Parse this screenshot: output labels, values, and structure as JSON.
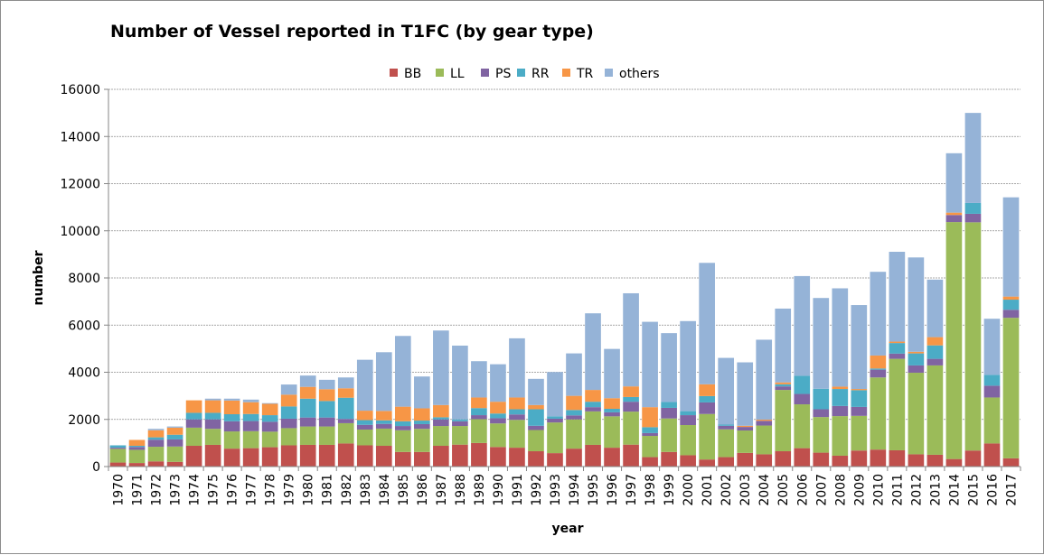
{
  "chart_data": {
    "type": "bar",
    "stacked": true,
    "title": "Number of Vessel reported in T1FC (by gear type)",
    "xlabel": "year",
    "ylabel": "number",
    "ylim": [
      0,
      16000
    ],
    "yticks": [
      0,
      2000,
      4000,
      6000,
      8000,
      10000,
      12000,
      14000,
      16000
    ],
    "grid": true,
    "legend_position": "top",
    "categories": [
      "1970",
      "1971",
      "1972",
      "1973",
      "1974",
      "1975",
      "1976",
      "1977",
      "1978",
      "1979",
      "1980",
      "1981",
      "1982",
      "1983",
      "1984",
      "1985",
      "1986",
      "1987",
      "1988",
      "1989",
      "1990",
      "1991",
      "1992",
      "1993",
      "1994",
      "1995",
      "1996",
      "1997",
      "1998",
      "1999",
      "2000",
      "2001",
      "2002",
      "2003",
      "2004",
      "2005",
      "2006",
      "2007",
      "2008",
      "2009",
      "2010",
      "2011",
      "2012",
      "2013",
      "2014",
      "2015",
      "2016",
      "2017"
    ],
    "series": [
      {
        "name": "BB",
        "color": "#C0504D",
        "values": [
          170,
          150,
          220,
          200,
          880,
          920,
          760,
          780,
          820,
          900,
          920,
          920,
          980,
          900,
          880,
          620,
          620,
          880,
          930,
          1000,
          830,
          800,
          650,
          570,
          760,
          920,
          800,
          930,
          400,
          620,
          480,
          300,
          400,
          580,
          520,
          650,
          780,
          590,
          460,
          680,
          720,
          690,
          520,
          500,
          320,
          680,
          980,
          350
        ]
      },
      {
        "name": "LL",
        "color": "#9BBB59",
        "values": [
          580,
          560,
          620,
          650,
          770,
          680,
          730,
          720,
          660,
          730,
          780,
          780,
          860,
          670,
          730,
          920,
          980,
          840,
          790,
          1010,
          1000,
          1180,
          900,
          1300,
          1240,
          1420,
          1330,
          1400,
          900,
          1420,
          1280,
          1930,
          1180,
          950,
          1220,
          2600,
          1860,
          1510,
          1680,
          1470,
          3060,
          3880,
          3460,
          3790,
          10050,
          9680,
          1950,
          5960
        ]
      },
      {
        "name": "PS",
        "color": "#8064A2",
        "values": [
          50,
          120,
          300,
          300,
          350,
          400,
          430,
          430,
          420,
          400,
          380,
          380,
          180,
          200,
          200,
          180,
          200,
          280,
          200,
          170,
          220,
          230,
          180,
          160,
          170,
          180,
          170,
          420,
          120,
          450,
          420,
          490,
          150,
          150,
          200,
          150,
          440,
          330,
          430,
          380,
          330,
          220,
          310,
          280,
          300,
          360,
          500,
          340
        ]
      },
      {
        "name": "RR",
        "color": "#4BACC6",
        "values": [
          100,
          50,
          100,
          200,
          280,
          280,
          300,
          300,
          280,
          520,
          800,
          700,
          900,
          200,
          150,
          200,
          150,
          90,
          80,
          300,
          200,
          220,
          700,
          100,
          230,
          230,
          150,
          200,
          250,
          250,
          170,
          270,
          50,
          0,
          0,
          90,
          770,
          870,
          720,
          710,
          50,
          450,
          510,
          570,
          0,
          460,
          460,
          430
        ]
      },
      {
        "name": "TR",
        "color": "#F79646",
        "values": [
          0,
          250,
          300,
          300,
          530,
          530,
          580,
          500,
          480,
          500,
          500,
          500,
          400,
          400,
          400,
          620,
          520,
          520,
          0,
          450,
          500,
          500,
          180,
          0,
          600,
          500,
          450,
          450,
          850,
          0,
          0,
          500,
          0,
          50,
          50,
          80,
          0,
          0,
          100,
          50,
          550,
          60,
          70,
          350,
          100,
          0,
          0,
          130
        ]
      },
      {
        "name": "others",
        "color": "#95B3D7",
        "values": [
          0,
          0,
          60,
          50,
          0,
          70,
          80,
          110,
          30,
          430,
          480,
          400,
          460,
          2160,
          2490,
          3000,
          1350,
          3160,
          3130,
          1540,
          1590,
          2510,
          1110,
          1880,
          1800,
          3250,
          2090,
          3950,
          3620,
          2920,
          3820,
          5150,
          2830,
          2690,
          3390,
          3130,
          4230,
          3850,
          4170,
          3560,
          3550,
          3810,
          4000,
          2440,
          2520,
          3820,
          2380,
          4210
        ]
      }
    ]
  }
}
